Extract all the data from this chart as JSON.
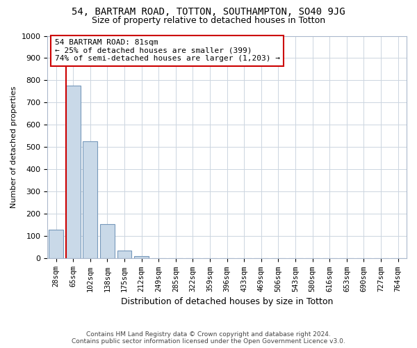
{
  "title1": "54, BARTRAM ROAD, TOTTON, SOUTHAMPTON, SO40 9JG",
  "title2": "Size of property relative to detached houses in Totton",
  "xlabel": "Distribution of detached houses by size in Totton",
  "ylabel": "Number of detached properties",
  "categories": [
    "28sqm",
    "65sqm",
    "102sqm",
    "138sqm",
    "175sqm",
    "212sqm",
    "249sqm",
    "285sqm",
    "322sqm",
    "359sqm",
    "396sqm",
    "433sqm",
    "469sqm",
    "506sqm",
    "543sqm",
    "580sqm",
    "616sqm",
    "653sqm",
    "690sqm",
    "727sqm",
    "764sqm"
  ],
  "values": [
    130,
    778,
    525,
    155,
    35,
    10,
    0,
    0,
    0,
    0,
    0,
    0,
    0,
    0,
    0,
    0,
    0,
    0,
    0,
    0,
    0
  ],
  "bar_color": "#c9d9e8",
  "bar_edge_color": "#7799bb",
  "marker_color": "#cc0000",
  "annotation_title": "54 BARTRAM ROAD: 81sqm",
  "annotation_line1": "← 25% of detached houses are smaller (399)",
  "annotation_line2": "74% of semi-detached houses are larger (1,203) →",
  "annotation_box_color": "#ffffff",
  "annotation_box_edge": "#cc0000",
  "ylim": [
    0,
    1000
  ],
  "yticks": [
    0,
    100,
    200,
    300,
    400,
    500,
    600,
    700,
    800,
    900,
    1000
  ],
  "footer1": "Contains HM Land Registry data © Crown copyright and database right 2024.",
  "footer2": "Contains public sector information licensed under the Open Government Licence v3.0.",
  "bg_color": "#ffffff",
  "grid_color": "#ccd5e0",
  "title1_fontsize": 10,
  "title2_fontsize": 9
}
